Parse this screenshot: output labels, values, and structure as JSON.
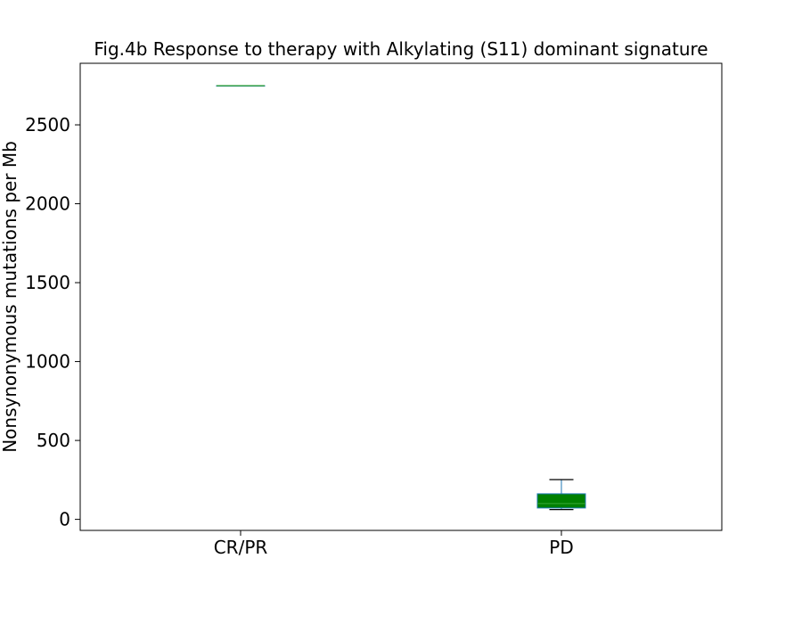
{
  "chart_data": {
    "type": "box",
    "title": "Fig.4b Response to therapy with Alkylating (S11) dominant signature",
    "xlabel": "",
    "ylabel": "Nonsynonymous mutations per Mb",
    "categories": [
      "CR/PR",
      "PD"
    ],
    "ylim": [
      -70,
      2890
    ],
    "yticks": [
      0,
      500,
      1000,
      1500,
      2000,
      2500
    ],
    "grid": false,
    "boxes": [
      {
        "category": "CR/PR",
        "whisker_low": 2748,
        "q1": 2748,
        "median": 2748,
        "q3": 2748,
        "whisker_high": 2748
      },
      {
        "category": "PD",
        "whisker_low": 62,
        "q1": 72,
        "median": 100,
        "q3": 162,
        "whisker_high": 252
      }
    ],
    "colors": {
      "box_fill": "#008000",
      "box_edge": "#1f77b4",
      "median": "#2ca02c",
      "whisker": "#1f77b4",
      "cap": "#000000"
    }
  }
}
